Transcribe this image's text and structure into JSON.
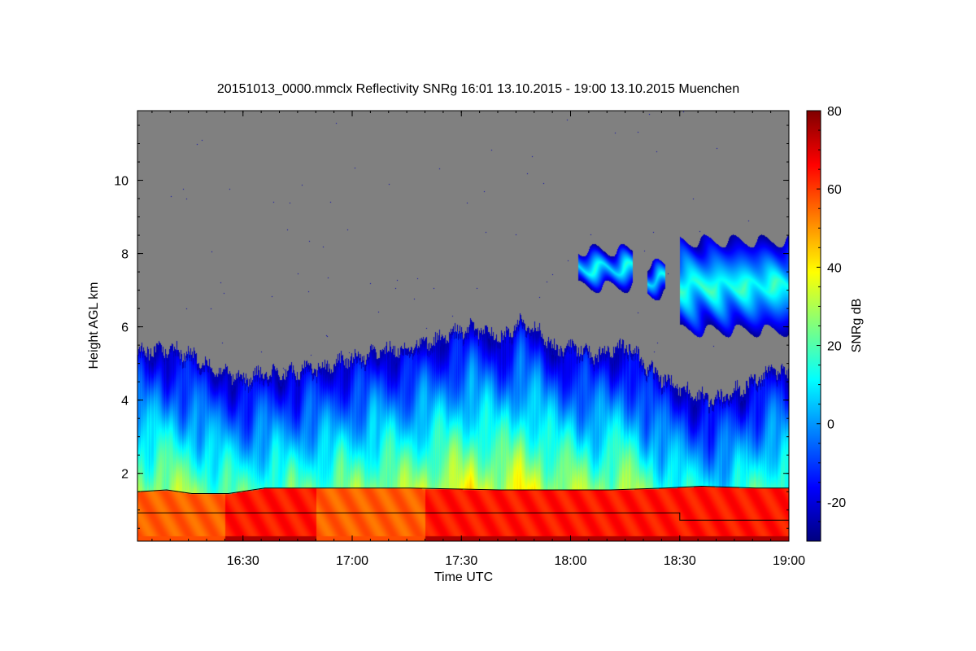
{
  "chart_data": {
    "type": "heatmap",
    "title": "20151013_0000.mmclx Reflectivity SNRg   16:01 13.10.2015 - 19:00 13.10.2015 Muenchen",
    "xlabel": "Time UTC",
    "ylabel": "Height AGL km",
    "colorbar_label": "SNRg dB",
    "x_range": [
      "16:01",
      "19:00"
    ],
    "x_range_minutes": [
      961,
      1140
    ],
    "x_ticks": [
      {
        "label": "16:30",
        "minute": 990
      },
      {
        "label": "17:00",
        "minute": 1020
      },
      {
        "label": "17:30",
        "minute": 1050
      },
      {
        "label": "18:00",
        "minute": 1080
      },
      {
        "label": "18:30",
        "minute": 1110
      },
      {
        "label": "19:00",
        "minute": 1140
      }
    ],
    "ylim": [
      0.15,
      11.9
    ],
    "y_ticks": [
      2,
      4,
      6,
      8,
      10
    ],
    "colorbar_range": [
      -30,
      80
    ],
    "colorbar_ticks": [
      -20,
      0,
      20,
      40,
      60,
      80
    ],
    "colormap": [
      "#00007f",
      "#0000ff",
      "#007fff",
      "#00ffff",
      "#7fff7f",
      "#ffff00",
      "#ff7f00",
      "#ff0000",
      "#7f0000"
    ],
    "no_signal_color": "#808080",
    "cloud_top_km": [
      [
        961,
        5.3
      ],
      [
        966,
        5.4
      ],
      [
        971,
        5.4
      ],
      [
        976,
        5.25
      ],
      [
        981,
        4.95
      ],
      [
        986,
        4.7
      ],
      [
        991,
        4.6
      ],
      [
        996,
        4.75
      ],
      [
        1001,
        4.7
      ],
      [
        1006,
        4.85
      ],
      [
        1011,
        4.9
      ],
      [
        1016,
        5.05
      ],
      [
        1021,
        5.2
      ],
      [
        1026,
        5.3
      ],
      [
        1031,
        5.4
      ],
      [
        1036,
        5.5
      ],
      [
        1041,
        5.6
      ],
      [
        1046,
        5.75
      ],
      [
        1051,
        6.0
      ],
      [
        1056,
        5.9
      ],
      [
        1061,
        5.7
      ],
      [
        1066,
        6.1
      ],
      [
        1071,
        5.9
      ],
      [
        1076,
        5.4
      ],
      [
        1081,
        5.5
      ],
      [
        1086,
        5.2
      ],
      [
        1091,
        5.4
      ],
      [
        1096,
        5.5
      ],
      [
        1101,
        4.9
      ],
      [
        1106,
        4.55
      ],
      [
        1111,
        4.3
      ],
      [
        1116,
        4.1
      ],
      [
        1121,
        4.05
      ],
      [
        1126,
        4.3
      ],
      [
        1131,
        4.6
      ],
      [
        1136,
        4.85
      ],
      [
        1140,
        4.7
      ]
    ],
    "upper_cloud_layers": [
      {
        "t0": 1082,
        "t1": 1097,
        "top_km": 8.1,
        "base_km": 7.1,
        "peak_db": 12
      },
      {
        "t0": 1101,
        "t1": 1106,
        "top_km": 7.7,
        "base_km": 6.9,
        "peak_db": 10
      },
      {
        "t0": 1110,
        "t1": 1140,
        "top_km": 8.35,
        "base_km": 5.9,
        "peak_db": 16
      }
    ],
    "boundary_lines_km": [
      {
        "name": "",
        "points": [
          [
            961,
            1.5
          ],
          [
            969,
            1.55
          ],
          [
            976,
            1.45
          ],
          [
            986,
            1.45
          ],
          [
            996,
            1.6
          ],
          [
            1015,
            1.6
          ],
          [
            1036,
            1.6
          ],
          [
            1061,
            1.55
          ],
          [
            1091,
            1.55
          ],
          [
            1106,
            1.6
          ],
          [
            1116,
            1.65
          ],
          [
            1131,
            1.6
          ],
          [
            1140,
            1.6
          ]
        ]
      },
      {
        "name": "",
        "points": [
          [
            961,
            0.92
          ],
          [
            1110,
            0.92
          ],
          [
            1110,
            0.72
          ],
          [
            1140,
            0.72
          ]
        ]
      }
    ],
    "grid": false,
    "colorbar_position": "right"
  }
}
